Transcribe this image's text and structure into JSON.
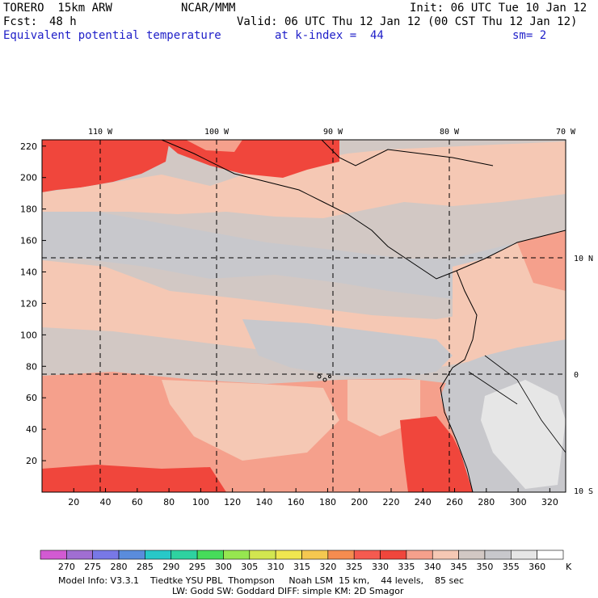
{
  "header": {
    "model": "TORERO  15km ARW",
    "org": "NCAR/MMM",
    "init": "Init: 06 UTC Tue 10 Jan 12",
    "fcst_label": "Fcst:",
    "fcst_value": "48 h",
    "valid": "Valid: 06 UTC Thu 12 Jan 12 (00 CST Thu 12 Jan 12)",
    "field": "Equivalent potential temperature",
    "level": "at k-index =  44",
    "smoothing": "sm= 2"
  },
  "map": {
    "lon_labels": [
      "110 W",
      "100 W",
      "90 W",
      "80 W",
      "70 W"
    ],
    "lat_labels": [
      "10 N",
      "0",
      "10 S"
    ],
    "x_ticks": [
      "20",
      "40",
      "60",
      "80",
      "100",
      "120",
      "140",
      "160",
      "180",
      "200",
      "220",
      "240",
      "260",
      "280",
      "300",
      "320"
    ],
    "y_ticks": [
      "220",
      "200",
      "180",
      "160",
      "140",
      "120",
      "100",
      "80",
      "60",
      "40",
      "20"
    ]
  },
  "colorbar": {
    "labels": [
      "270",
      "275",
      "280",
      "285",
      "290",
      "295",
      "300",
      "305",
      "310",
      "315",
      "320",
      "325",
      "330",
      "335",
      "340",
      "345",
      "350",
      "355",
      "360"
    ],
    "unit": "K",
    "colors": [
      "#d25ad2",
      "#a06ed2",
      "#7878e6",
      "#5a8cdc",
      "#28c8c8",
      "#2ed2a0",
      "#46dc5a",
      "#96e650",
      "#d2e650",
      "#f0e650",
      "#f5c850",
      "#f58c50",
      "#f55a50",
      "#f0463c",
      "#f5a08c",
      "#f5c8b4",
      "#d2c8c4",
      "#c8c8cc",
      "#e6e6e6",
      "#ffffff"
    ]
  },
  "footer": {
    "line1": "Model Info: V3.3.1    Tiedtke YSU PBL  Thompson     Noah LSM  15 km,    44 levels,    85 sec",
    "line2": "LW: Godd SW: Goddard DIFF: simple KM: 2D Smagor"
  }
}
